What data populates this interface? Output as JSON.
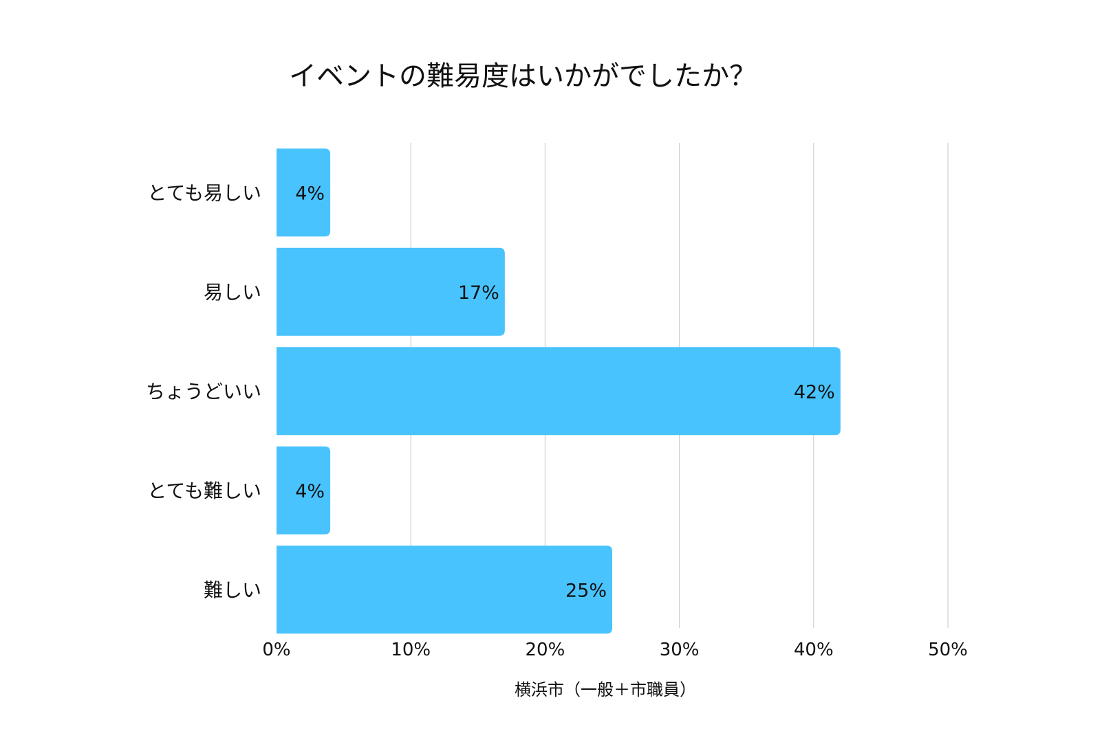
{
  "chart_data": {
    "type": "bar",
    "orientation": "horizontal",
    "title": "イベントの難易度はいかがでしたか？",
    "xlabel": "横浜市（一般＋市職員）",
    "ylabel": "",
    "categories": [
      "とても易しい",
      "易しい",
      "ちょうどいい",
      "とても難しい",
      "難しい"
    ],
    "values": [
      4,
      17,
      42,
      4,
      25
    ],
    "data_labels": [
      "4%",
      "17%",
      "42%",
      "4%",
      "25%"
    ],
    "xlim": [
      0,
      50
    ],
    "x_ticks": [
      0,
      10,
      20,
      30,
      40,
      50
    ],
    "x_tick_labels": [
      "0%",
      "10%",
      "20%",
      "30%",
      "40%",
      "50%"
    ],
    "grid": "vertical",
    "legend": "none",
    "bar_color": "#48c3fd"
  }
}
